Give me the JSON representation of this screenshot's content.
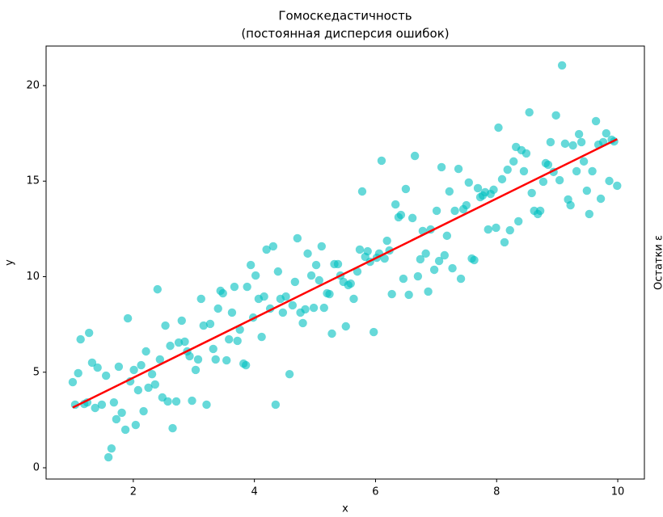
{
  "chart_data": {
    "type": "scatter",
    "title": "Гомоскедастичность",
    "subtitle": "(постоянная дисперсия ошибок)",
    "xlabel": "x",
    "ylabel": "y",
    "side_text": "Остатки ε",
    "xlim": [
      0.56,
      10.44
    ],
    "ylim": [
      -0.59,
      22.07
    ],
    "xticks": [
      2,
      4,
      6,
      8,
      10
    ],
    "yticks": [
      0,
      5,
      10,
      15,
      20
    ],
    "grid": false,
    "points": {
      "color": "#00bfbf",
      "x": [
        1.0,
        1.04,
        1.09,
        1.13,
        1.19,
        1.24,
        1.27,
        1.32,
        1.37,
        1.41,
        1.48,
        1.55,
        1.59,
        1.64,
        1.68,
        1.72,
        1.76,
        1.81,
        1.87,
        1.91,
        1.95,
        2.01,
        2.04,
        2.08,
        2.13,
        2.17,
        2.21,
        2.25,
        2.31,
        2.36,
        2.4,
        2.44,
        2.48,
        2.53,
        2.57,
        2.61,
        2.65,
        2.71,
        2.75,
        2.8,
        2.85,
        2.89,
        2.93,
        2.97,
        3.03,
        3.07,
        3.12,
        3.16,
        3.21,
        3.27,
        3.32,
        3.36,
        3.4,
        3.44,
        3.48,
        3.54,
        3.58,
        3.63,
        3.67,
        3.72,
        3.76,
        3.82,
        3.86,
        3.88,
        3.94,
        3.98,
        4.02,
        4.07,
        4.12,
        4.16,
        4.2,
        4.26,
        4.31,
        4.35,
        4.39,
        4.43,
        4.47,
        4.52,
        4.58,
        4.63,
        4.67,
        4.71,
        4.76,
        4.8,
        4.84,
        4.88,
        4.94,
        4.98,
        5.02,
        5.07,
        5.11,
        5.15,
        5.2,
        5.24,
        5.28,
        5.32,
        5.38,
        5.42,
        5.47,
        5.51,
        5.55,
        5.59,
        5.64,
        5.7,
        5.74,
        5.78,
        5.83,
        5.87,
        5.91,
        5.97,
        6.02,
        6.06,
        6.1,
        6.15,
        6.19,
        6.23,
        6.27,
        6.33,
        6.38,
        6.42,
        6.46,
        6.5,
        6.55,
        6.61,
        6.65,
        6.7,
        6.74,
        6.78,
        6.83,
        6.87,
        6.91,
        6.97,
        7.01,
        7.05,
        7.09,
        7.14,
        7.18,
        7.22,
        7.27,
        7.31,
        7.37,
        7.41,
        7.45,
        7.5,
        7.54,
        7.59,
        7.63,
        7.69,
        7.73,
        7.77,
        7.81,
        7.86,
        7.9,
        7.95,
        7.99,
        8.03,
        8.09,
        8.13,
        8.18,
        8.22,
        8.28,
        8.32,
        8.36,
        8.41,
        8.45,
        8.49,
        8.54,
        8.58,
        8.62,
        8.68,
        8.72,
        8.77,
        8.81,
        8.85,
        8.89,
        8.94,
        8.98,
        9.04,
        9.08,
        9.13,
        9.18,
        9.22,
        9.26,
        9.32,
        9.36,
        9.4,
        9.44,
        9.49,
        9.53,
        9.58,
        9.64,
        9.68,
        9.72,
        9.76,
        9.81,
        9.86,
        9.9,
        9.94,
        9.99
      ],
      "y": [
        4.48,
        3.3,
        4.95,
        6.72,
        3.34,
        3.42,
        7.06,
        5.5,
        3.13,
        5.24,
        3.3,
        4.82,
        0.55,
        1.01,
        3.42,
        2.54,
        5.29,
        2.88,
        1.99,
        7.82,
        4.52,
        5.12,
        2.24,
        4.06,
        5.37,
        2.96,
        6.09,
        4.19,
        4.9,
        4.36,
        9.34,
        5.67,
        3.68,
        7.44,
        3.47,
        6.38,
        2.07,
        3.47,
        6.55,
        7.7,
        6.6,
        6.09,
        5.84,
        3.51,
        5.12,
        5.67,
        8.84,
        7.44,
        3.3,
        7.53,
        6.22,
        5.67,
        8.33,
        9.26,
        9.13,
        5.62,
        6.72,
        8.12,
        9.47,
        6.64,
        7.23,
        5.45,
        5.37,
        9.47,
        10.61,
        7.86,
        10.06,
        8.84,
        6.85,
        8.96,
        11.42,
        8.33,
        11.59,
        3.3,
        10.27,
        8.84,
        8.12,
        8.96,
        4.9,
        8.5,
        9.73,
        12.01,
        8.12,
        7.57,
        8.29,
        11.21,
        10.06,
        8.37,
        10.61,
        9.81,
        11.59,
        8.37,
        9.13,
        9.09,
        7.02,
        10.66,
        10.66,
        10.06,
        9.73,
        7.4,
        9.56,
        9.64,
        8.84,
        10.27,
        11.42,
        14.46,
        11.04,
        11.33,
        10.78,
        7.1,
        10.99,
        11.21,
        16.07,
        10.95,
        11.88,
        11.37,
        9.09,
        13.78,
        13.11,
        13.23,
        9.89,
        14.59,
        9.05,
        13.07,
        16.32,
        10.02,
        10.91,
        12.39,
        11.21,
        9.22,
        12.47,
        10.36,
        13.45,
        10.82,
        15.73,
        11.12,
        12.14,
        14.46,
        10.44,
        13.45,
        15.64,
        9.89,
        13.53,
        13.74,
        14.93,
        10.95,
        10.87,
        14.63,
        14.16,
        14.25,
        14.42,
        12.47,
        14.33,
        14.55,
        12.56,
        17.8,
        15.1,
        11.8,
        15.6,
        12.43,
        16.03,
        16.79,
        12.9,
        16.62,
        15.52,
        16.45,
        18.6,
        14.38,
        13.45,
        13.28,
        13.45,
        14.97,
        15.94,
        15.86,
        17.04,
        15.48,
        18.44,
        15.05,
        21.06,
        16.96,
        14.04,
        13.74,
        16.87,
        15.52,
        17.46,
        17.04,
        16.03,
        14.5,
        13.28,
        15.52,
        18.14,
        16.91,
        14.08,
        17.04,
        17.5,
        15.01,
        17.17,
        17.08,
        14.76
      ]
    },
    "fit_line": {
      "color": "#ff0000",
      "x": [
        1.0,
        9.99
      ],
      "y": [
        3.15,
        17.2
      ]
    }
  }
}
